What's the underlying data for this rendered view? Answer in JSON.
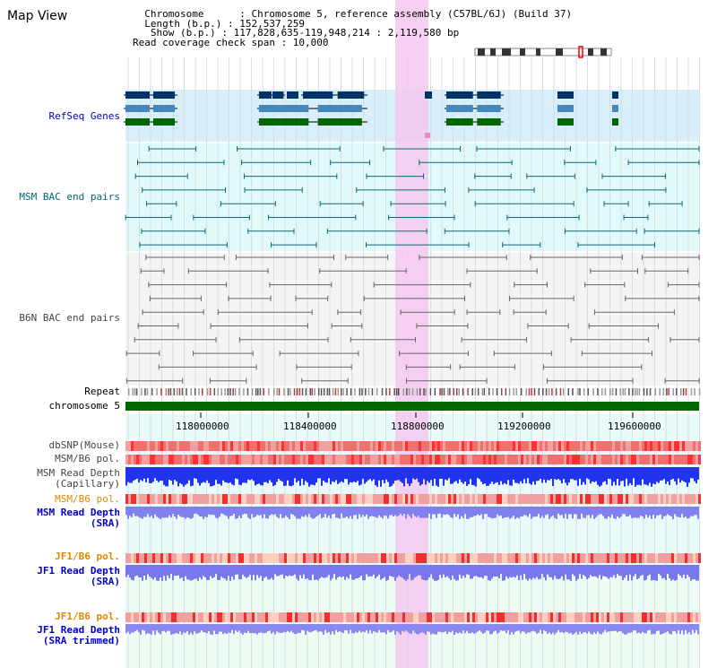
{
  "view_title": "Map View",
  "info": {
    "line1": "  Chromosome      : Chromosome 5, reference assembly (C57BL/6J) (Build 37)",
    "line2": "  Length (b.p.) : 152,537,259",
    "line3": "   Show (b.p.) : 117,828,635-119,948,214 : 2,119,580 bp",
    "line4": "Read coverage check span : 10,000"
  },
  "tracks": {
    "refseq": "RefSeq Genes",
    "msm_bac": "MSM BAC end pairs",
    "b6n_bac": "B6N BAC end pairs",
    "repeat": "Repeat",
    "chromosome": "chromosome 5",
    "dbsnp": "dbSNP(Mouse)",
    "msm_b6_pol_1": "MSM/B6 pol.",
    "msm_read_depth_cap_1": "MSM Read Depth",
    "msm_read_depth_cap_2": "(Capillary)",
    "msm_b6_pol_2": "MSM/B6 pol.",
    "msm_read_depth_sra_1": "MSM Read Depth",
    "msm_read_depth_sra_2": "(SRA)",
    "jf1_b6_pol_1": "JF1/B6 pol.",
    "jf1_read_depth_sra_1": "JF1 Read Depth",
    "jf1_read_depth_sra_2": "(SRA)",
    "jf1_b6_pol_2": "JF1/B6 pol.",
    "jf1_read_depth_trim_1": "JF1 Read Depth",
    "jf1_read_depth_trim_2": "(SRA trimmed)"
  },
  "axis": {
    "ticks": [
      "118000000",
      "118400000",
      "118800000",
      "119200000",
      "119600000"
    ]
  },
  "colors": {
    "label_blue": "#0000cc",
    "label_teal": "#006677",
    "label_orange": "#dd8800",
    "label_gray": "#444444",
    "highlight": "#f5c8f0",
    "refseq_bg": "#d8eef8",
    "msm_bg": "#e0fafa",
    "chromosome_bar": "#006600"
  }
}
